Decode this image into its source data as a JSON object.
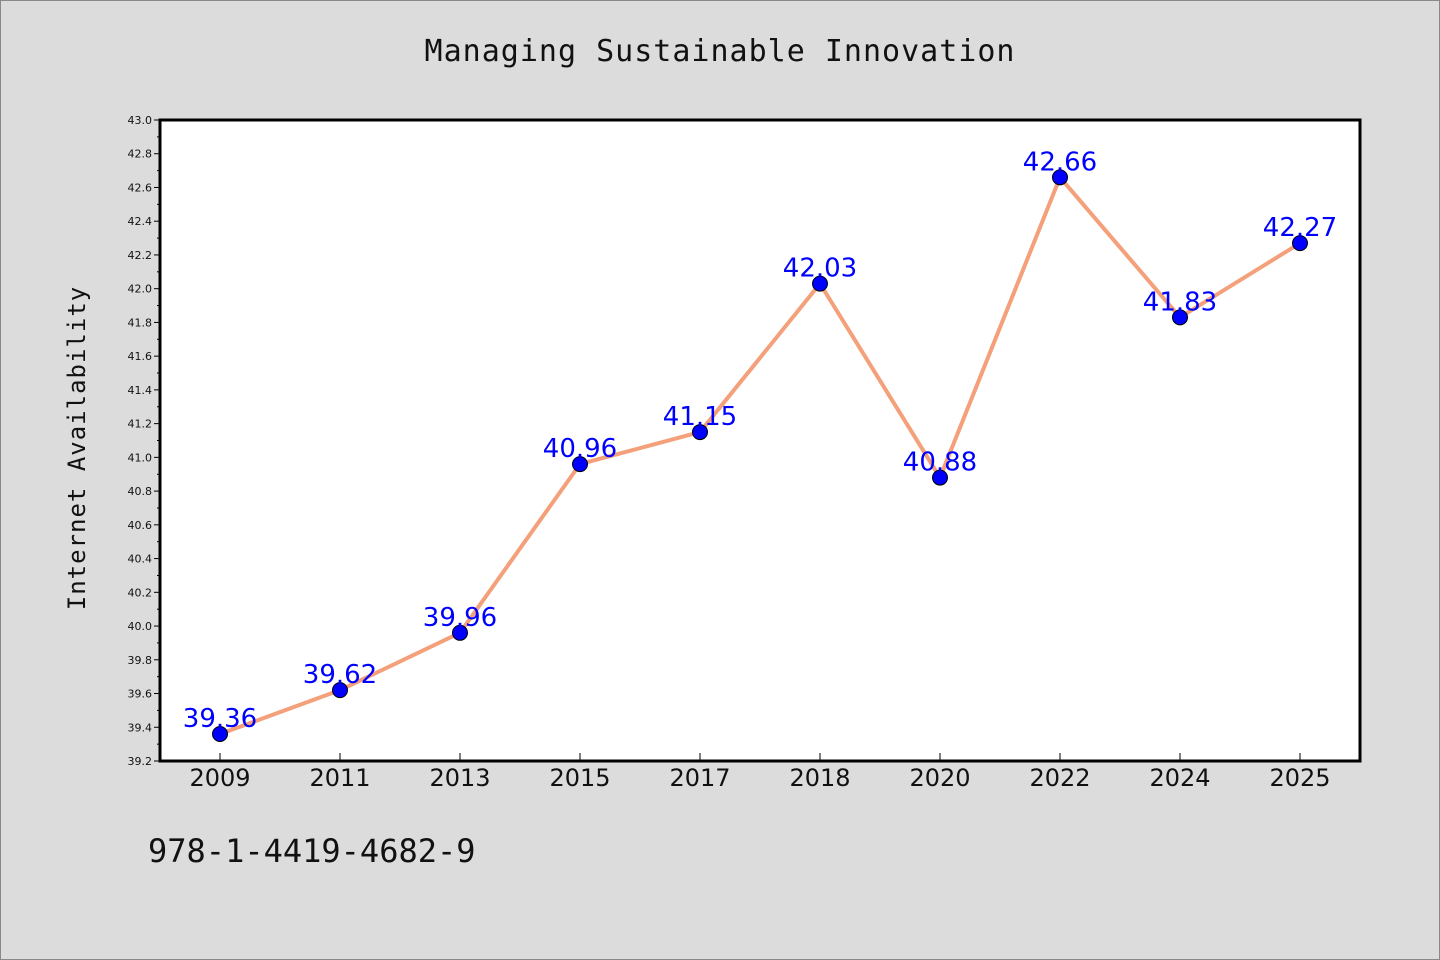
{
  "chart_data": {
    "type": "line",
    "title": "Managing Sustainable Innovation",
    "xlabel": "",
    "ylabel": "Internet Availability",
    "categories": [
      "2009",
      "2011",
      "2013",
      "2015",
      "2017",
      "2018",
      "2020",
      "2022",
      "2024",
      "2025"
    ],
    "series": [
      {
        "values": [
          39.36,
          39.62,
          39.96,
          40.96,
          41.15,
          42.03,
          40.88,
          42.66,
          41.83,
          42.27
        ],
        "data_labels": [
          "39.36",
          "39.62",
          "39.96",
          "40.96",
          "41.15",
          "42.03",
          "40.88",
          "42.66",
          "41.83",
          "42.27"
        ],
        "line_color": "#f4a07a",
        "marker_color": "#0000ff"
      }
    ],
    "ylim": [
      39.2,
      43.0
    ],
    "y_ticks": [
      "39.2",
      "39.4",
      "39.6",
      "39.8",
      "40.0",
      "40.2",
      "40.4",
      "40.6",
      "40.8",
      "41.0",
      "41.2",
      "41.4",
      "41.6",
      "41.8",
      "42.0",
      "42.2",
      "42.4",
      "42.6",
      "42.8",
      "43.0"
    ],
    "grid": false,
    "legend": "none"
  },
  "footer": {
    "isbn": "978-1-4419-4682-9"
  },
  "colors": {
    "background": "#dcdcdc",
    "plot_background": "#ffffff",
    "data_label": "#0000ff"
  }
}
